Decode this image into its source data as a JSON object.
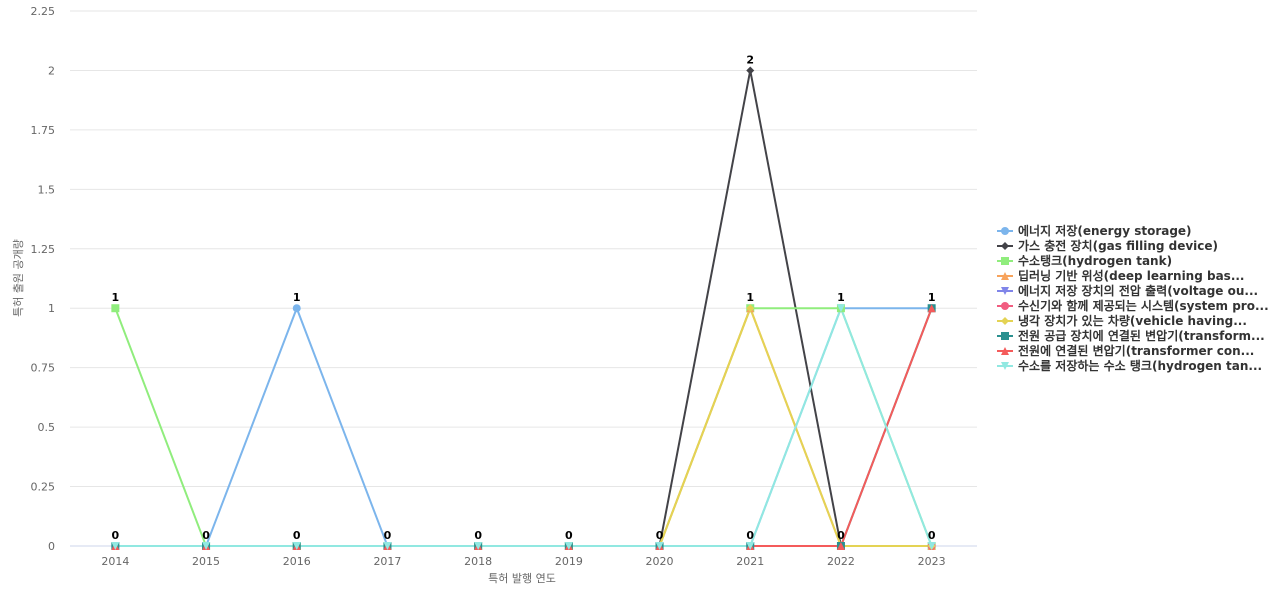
{
  "chart_data": {
    "type": "line",
    "x_label": "특허 발행 연도",
    "y_label": "특허 출원 공개량",
    "categories": [
      "2014",
      "2015",
      "2016",
      "2017",
      "2018",
      "2019",
      "2020",
      "2021",
      "2022",
      "2023"
    ],
    "ylim": [
      0,
      2.25
    ],
    "yticks": [
      0,
      0.25,
      0.5,
      0.75,
      1,
      1.25,
      1.5,
      1.75,
      2,
      2.25
    ],
    "grid": true,
    "legend": "right",
    "series": [
      {
        "name": "에너지 저장(energy storage)",
        "color": "#7cb5ec",
        "values": [
          0,
          0,
          1,
          0,
          0,
          0,
          0,
          0,
          1,
          1
        ]
      },
      {
        "name": "가스 충전 장치(gas filling device)",
        "color": "#434348",
        "values": [
          0,
          0,
          0,
          0,
          0,
          0,
          0,
          2,
          0,
          0
        ]
      },
      {
        "name": "수소탱크(hydrogen tank)",
        "color": "#90ed7d",
        "values": [
          1,
          0,
          0,
          0,
          0,
          0,
          0,
          1,
          1,
          0
        ]
      },
      {
        "name": "딥러닝 기반 위성(deep learning bas...",
        "color": "#f7a35c",
        "values": [
          0,
          0,
          0,
          0,
          0,
          0,
          0,
          1,
          0,
          0
        ]
      },
      {
        "name": "에너지 저장 장치의 전압 출력(voltage ou...",
        "color": "#8085e9",
        "values": [
          0,
          0,
          0,
          0,
          0,
          0,
          0,
          0,
          0,
          0
        ]
      },
      {
        "name": "수신기와 함께 제공되는 시스템(system pro...",
        "color": "#f15c80",
        "values": [
          0,
          0,
          0,
          0,
          0,
          0,
          0,
          0,
          0,
          0
        ]
      },
      {
        "name": "냉각 장치가 있는 차량(vehicle having...",
        "color": "#e4d354",
        "values": [
          0,
          0,
          0,
          0,
          0,
          0,
          0,
          1,
          0,
          0
        ]
      },
      {
        "name": "전원 공급 장치에 연결된 변압기(transform...",
        "color": "#2b908f",
        "values": [
          0,
          0,
          0,
          0,
          0,
          0,
          0,
          0,
          0,
          1
        ]
      },
      {
        "name": "전원에 연결된 변압기(transformer con...",
        "color": "#f45b5b",
        "values": [
          0,
          0,
          0,
          0,
          0,
          0,
          0,
          0,
          0,
          1
        ]
      },
      {
        "name": "수소를 저장하는 수소 탱크(hydrogen tan...",
        "color": "#91e8e1",
        "values": [
          0,
          0,
          0,
          0,
          0,
          0,
          0,
          0,
          1,
          0
        ]
      }
    ]
  }
}
